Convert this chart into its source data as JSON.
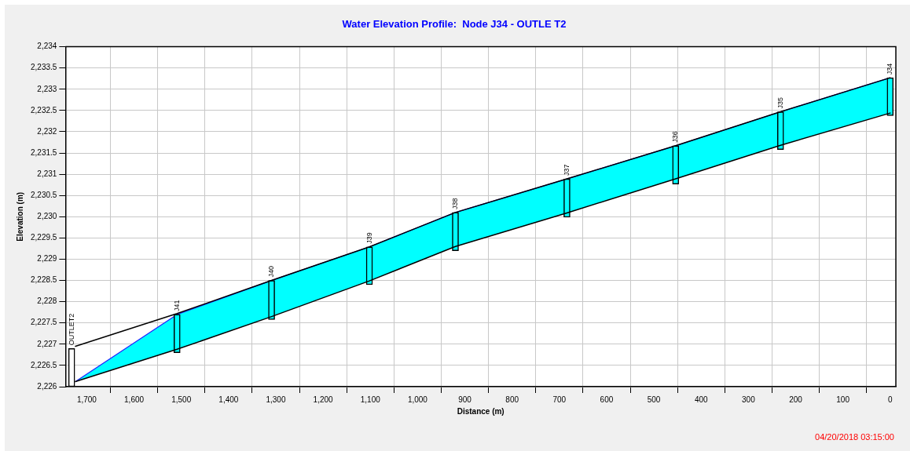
{
  "chart_data": {
    "type": "line",
    "title": "Water Elevation Profile:  Node J34 - OUTLE T2",
    "xlabel": "Distance (m)",
    "ylabel": "Elevation (m)",
    "x": [
      1724,
      1509,
      1309,
      1102,
      920,
      684,
      454,
      232,
      0
    ],
    "series": [
      {
        "type": "area",
        "color": "#00ffff",
        "values": [
          2226.12,
          2227.7,
          2228.5,
          2229.29,
          2230.1,
          2230.89,
          2231.67,
          2232.47,
          2233.27
        ]
      },
      {
        "color": "#000000",
        "values": [
          2226.12,
          2226.88,
          2227.65,
          2228.49,
          2229.3,
          2230.09,
          2230.89,
          2231.68,
          2232.44
        ]
      },
      {
        "color": "#000000",
        "values": [
          2226.95,
          2227.72,
          2228.5,
          2229.29,
          2230.1,
          2230.89,
          2231.67,
          2232.47,
          2233.27
        ]
      },
      {
        "type": "bar",
        "x": [
          1732,
          1509,
          1309,
          1102,
          920,
          684,
          454,
          232,
          0
        ],
        "colors": [
          "#ffffff",
          "#00ffff",
          "#00ffff",
          "#00ffff",
          "#00ffff",
          "#00ffff",
          "#00ffff",
          "#00ffff",
          "#00ffff"
        ],
        "base": [
          2226,
          2226.8,
          2227.58,
          2228.4,
          2229.2,
          2229.99,
          2230.77,
          2231.58,
          2232.38
        ],
        "values": [
          0.9,
          0.9,
          0.92,
          0.89,
          0.9,
          0.9,
          0.9,
          0.89,
          0.89
        ],
        "value_labels": [
          "OUTLET2",
          "J41",
          "J40",
          "J39",
          "J38",
          "J37",
          "J36",
          "J35",
          "J34"
        ]
      }
    ],
    "xlim": [
      1745,
      -12
    ],
    "xticks": [
      {
        "value": 1700,
        "label": "1,700"
      },
      {
        "value": 1600,
        "label": "1,600"
      },
      {
        "value": 1500,
        "label": "1,500"
      },
      {
        "value": 1400,
        "label": "1,400"
      },
      {
        "value": 1300,
        "label": "1,300"
      },
      {
        "value": 1200,
        "label": "1,200"
      },
      {
        "value": 1100,
        "label": "1,100"
      },
      {
        "value": 1000,
        "label": "1,000"
      },
      900,
      800,
      700,
      600,
      500,
      400,
      300,
      200,
      100,
      0
    ],
    "ylim": [
      2226,
      2234
    ],
    "yticks": [
      {
        "value": 2226,
        "label": "2,226"
      },
      {
        "value": 2226.5,
        "label": "2,226.5"
      },
      {
        "value": 2227,
        "label": "2,227"
      },
      {
        "value": 2227.5,
        "label": "2,227.5"
      },
      {
        "value": 2228,
        "label": "2,228"
      },
      {
        "value": 2228.5,
        "label": "2,228.5"
      },
      {
        "value": 2229,
        "label": "2,229"
      },
      {
        "value": 2229.5,
        "label": "2,229.5"
      },
      {
        "value": 2230,
        "label": "2,230"
      },
      {
        "value": 2230.5,
        "label": "2,230.5"
      },
      {
        "value": 2231,
        "label": "2,231"
      },
      {
        "value": 2231.5,
        "label": "2,231.5"
      },
      {
        "value": 2232,
        "label": "2,232"
      },
      {
        "value": 2232.5,
        "label": "2,232.5"
      },
      {
        "value": 2233,
        "label": "2,233"
      },
      {
        "value": 2233.5,
        "label": "2,233.5"
      },
      {
        "value": 2234,
        "label": "2,234"
      }
    ],
    "grid": true,
    "legend": false,
    "marker": "none",
    "annotations": [
      "04/20/2018 03:15:00"
    ]
  }
}
